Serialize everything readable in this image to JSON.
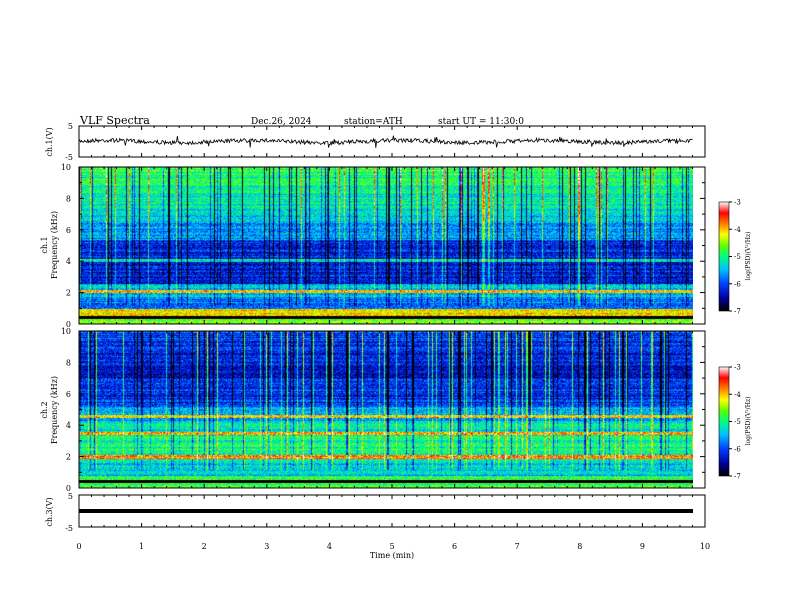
{
  "header": {
    "title": "VLF  Spectra",
    "date": "Dec.26, 2024",
    "station": "station=ATH",
    "start": "start  UT  =    11:30:0"
  },
  "chart_data": [
    {
      "type": "line",
      "name": "ch1-waveform",
      "ylabel": "ch.1(V)",
      "ylim": [
        -5,
        5
      ],
      "yticks": [
        "5",
        "-5"
      ],
      "xlim": [
        0,
        10
      ],
      "baseline": 0,
      "color": "#000000"
    },
    {
      "type": "heatmap",
      "name": "ch1-spectrogram",
      "ylabel": "ch.1\nFrequency (kHz)",
      "ylabel_lines": [
        "ch.1",
        "Frequency (kHz)"
      ],
      "ylim": [
        0,
        10
      ],
      "yticks": [
        "0",
        "2",
        "4",
        "6",
        "8",
        "10"
      ],
      "xlim": [
        0,
        9.8
      ],
      "colorbar": {
        "label": "log(PSD)(V²/Hz)",
        "range": [
          -7,
          -3
        ],
        "ticks": [
          "-3",
          "-4",
          "-5",
          "-6",
          "-7"
        ]
      }
    },
    {
      "type": "heatmap",
      "name": "ch2-spectrogram",
      "ylabel_lines": [
        "ch.2",
        "Frequency (kHz)"
      ],
      "ylim": [
        0,
        10
      ],
      "yticks": [
        "0",
        "2",
        "4",
        "6",
        "8",
        "10"
      ],
      "xlim": [
        0,
        9.8
      ],
      "colorbar": {
        "label": "log(PSD)(V²/Hz)",
        "range": [
          -7,
          -3
        ],
        "ticks": [
          "-3",
          "-4",
          "-5",
          "-6",
          "-7"
        ]
      }
    },
    {
      "type": "line",
      "name": "ch3-waveform",
      "ylabel": "ch.3(V)",
      "ylim": [
        -5,
        5
      ],
      "yticks": [
        "5",
        "-5"
      ],
      "xlim": [
        0,
        10
      ],
      "baseline": 0,
      "color": "#000000"
    }
  ],
  "xaxis": {
    "label": "Time  (min)",
    "ticks": [
      "0",
      "1",
      "2",
      "3",
      "4",
      "5",
      "6",
      "7",
      "8",
      "9",
      "10"
    ]
  }
}
